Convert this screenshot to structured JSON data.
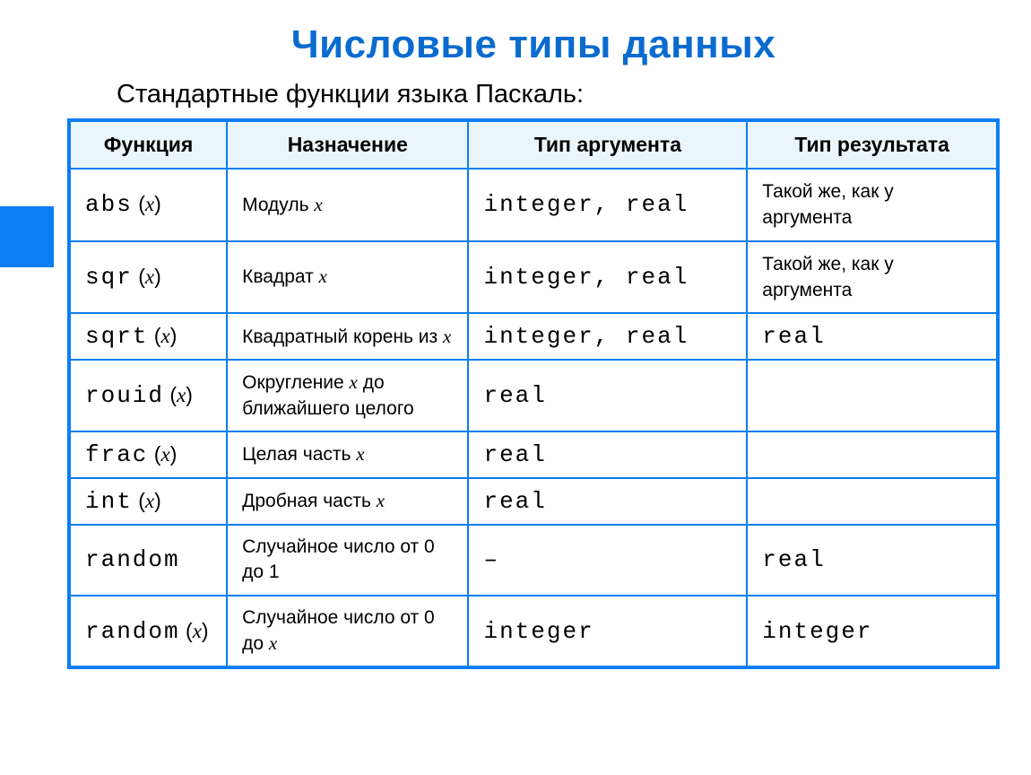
{
  "colors": {
    "accent": "#0a7ef2",
    "title": "#0a6bcf",
    "header_bg": "#eaf6fb",
    "cell_bg": "#ffffff",
    "text": "#000000"
  },
  "title": "Числовые типы данных",
  "subtitle": "Стандартные функции языка Паскаль:",
  "table": {
    "columns": [
      {
        "label": "Функция",
        "width_pct": 17
      },
      {
        "label": "Назначение",
        "width_pct": 26
      },
      {
        "label": "Тип аргумента",
        "width_pct": 30
      },
      {
        "label": "Тип результата",
        "width_pct": 27
      }
    ],
    "rows": [
      {
        "fn": "abs",
        "fn_arg": "x",
        "purpose_prefix": "Модуль ",
        "purpose_var": "x",
        "purpose_suffix": "",
        "arg_type": "integer, real",
        "result": "Такой же, как у аргумента",
        "result_is_mono": false
      },
      {
        "fn": "sqr",
        "fn_arg": "x",
        "purpose_prefix": "Квадрат ",
        "purpose_var": "x",
        "purpose_suffix": "",
        "arg_type": "integer, real",
        "result": "Такой же, как у аргумента",
        "result_is_mono": false
      },
      {
        "fn": "sqrt",
        "fn_arg": "x",
        "purpose_prefix": "Квадратный корень из ",
        "purpose_var": "x",
        "purpose_suffix": "",
        "arg_type": "integer, real",
        "result": "real",
        "result_is_mono": true
      },
      {
        "fn": "rouid",
        "fn_arg": "x",
        "purpose_prefix": "Округление ",
        "purpose_var": "x",
        "purpose_suffix": " до ближайшего целого",
        "arg_type": "real",
        "result": "",
        "result_is_mono": false
      },
      {
        "fn": "frac",
        "fn_arg": "x",
        "purpose_prefix": "Целая часть ",
        "purpose_var": "x",
        "purpose_suffix": "",
        "arg_type": "real",
        "result": "",
        "result_is_mono": false
      },
      {
        "fn": "int",
        "fn_arg": "x",
        "purpose_prefix": "Дробная часть ",
        "purpose_var": "x",
        "purpose_suffix": "",
        "arg_type": "real",
        "result": "",
        "result_is_mono": false
      },
      {
        "fn": "random",
        "fn_arg": "",
        "purpose_prefix": "Случайное число от 0 до 1",
        "purpose_var": "",
        "purpose_suffix": "",
        "arg_type": "–",
        "result": "real",
        "result_is_mono": true
      },
      {
        "fn": "random",
        "fn_arg": "x",
        "purpose_prefix": "Случайное число от 0 до ",
        "purpose_var": "x",
        "purpose_suffix": "",
        "arg_type": "integer",
        "result": "integer",
        "result_is_mono": true
      }
    ]
  }
}
